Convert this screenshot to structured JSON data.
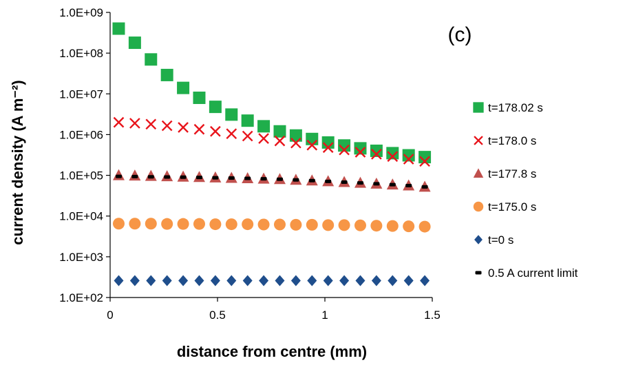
{
  "chart_data": {
    "type": "scatter",
    "title": "",
    "panel_label": "(c)",
    "xlabel": "distance from centre (mm)",
    "ylabel": "current density (A m⁻²)",
    "xlim": [
      0,
      1.5
    ],
    "ylim": [
      100,
      1000000000
    ],
    "yscale": "log",
    "x_ticks": [
      "0",
      "0.5",
      "1",
      "1.5"
    ],
    "y_ticks": [
      "1.0E+02",
      "1.0E+03",
      "1.0E+04",
      "1.0E+05",
      "1.0E+06",
      "1.0E+07",
      "1.0E+08",
      "1.0E+09"
    ],
    "grid": false,
    "legend_position": "right",
    "x": [
      0.04,
      0.115,
      0.19,
      0.265,
      0.34,
      0.415,
      0.49,
      0.565,
      0.64,
      0.715,
      0.79,
      0.865,
      0.94,
      1.015,
      1.09,
      1.165,
      1.24,
      1.315,
      1.39,
      1.465
    ],
    "series": [
      {
        "name": "t=178.02 s",
        "marker": "square",
        "color": "#1fae4b",
        "values": [
          400000000,
          180000000,
          70000000,
          29000000,
          14000000,
          8000000,
          4800000,
          3100000,
          2200000,
          1600000,
          1200000,
          950000,
          780000,
          640000,
          540000,
          460000,
          400000,
          350000,
          310000,
          280000
        ]
      },
      {
        "name": "t=178.0 s",
        "marker": "x",
        "color": "#e8141b",
        "values": [
          2000000,
          1900000,
          1800000,
          1650000,
          1500000,
          1350000,
          1200000,
          1050000,
          920000,
          800000,
          700000,
          620000,
          550000,
          480000,
          420000,
          370000,
          330000,
          290000,
          250000,
          220000
        ]
      },
      {
        "name": "t=177.8 s",
        "marker": "triangle",
        "color": "#c0504d",
        "values": [
          100000,
          98000,
          96000,
          94000,
          92000,
          90000,
          88000,
          86000,
          84000,
          82000,
          80000,
          77000,
          74000,
          71000,
          68000,
          65000,
          62000,
          59000,
          56000,
          52000
        ]
      },
      {
        "name": "t=175.0 s",
        "marker": "circle",
        "color": "#f79646",
        "values": [
          6500,
          6500,
          6500,
          6400,
          6400,
          6400,
          6300,
          6300,
          6300,
          6200,
          6200,
          6100,
          6100,
          6000,
          6000,
          5900,
          5800,
          5700,
          5600,
          5500
        ]
      },
      {
        "name": "t=0 s",
        "marker": "diamond",
        "color": "#1f4e8c",
        "values": [
          260,
          260,
          260,
          260,
          260,
          260,
          260,
          260,
          260,
          260,
          260,
          260,
          260,
          260,
          260,
          260,
          260,
          260,
          260,
          260
        ]
      },
      {
        "name": "0.5 A current limit",
        "marker": "dash",
        "color": "#000000",
        "values": [
          94000,
          93000,
          92000,
          91000,
          90000,
          89000,
          87000,
          86000,
          84000,
          82000,
          80000,
          77000,
          74000,
          71000,
          68000,
          65000,
          62000,
          59000,
          56000,
          52000
        ]
      }
    ]
  }
}
